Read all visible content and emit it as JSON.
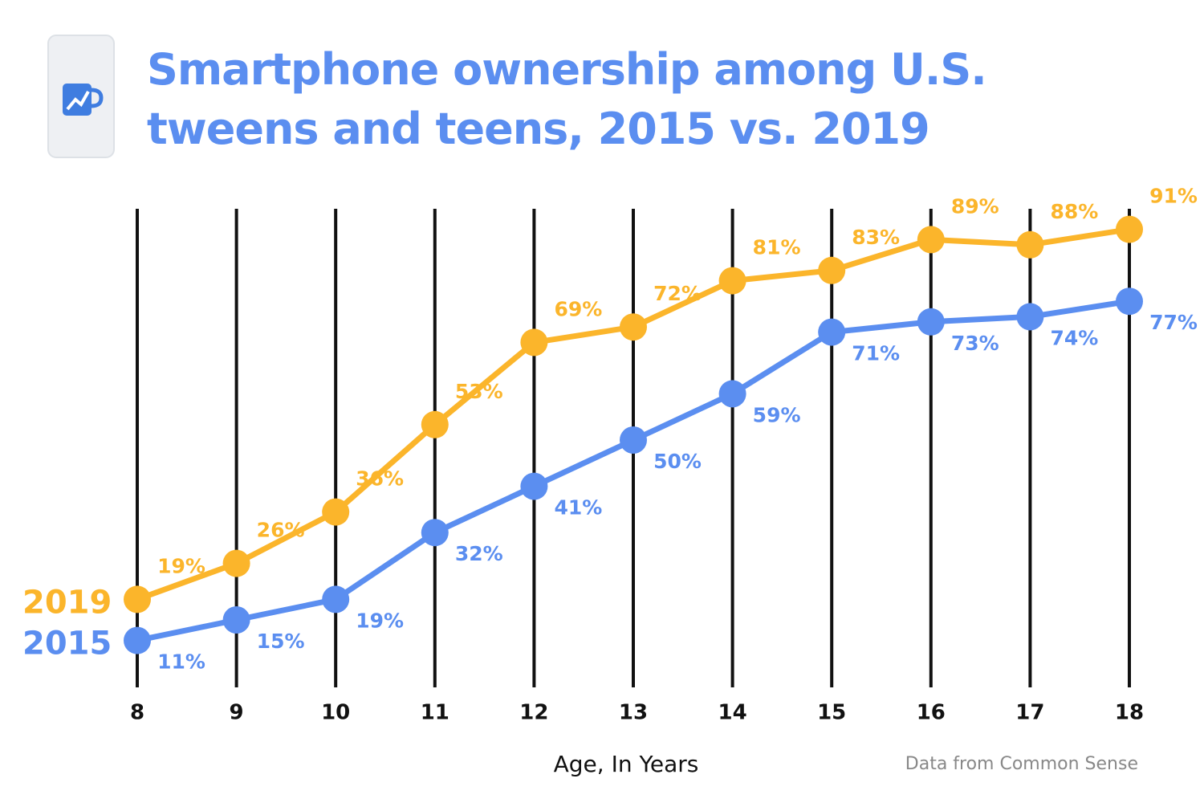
{
  "chart_data": {
    "type": "line",
    "title": "Smartphone ownership among U.S. tweens and teens, 2015 vs. 2019",
    "x_label": "Age, In Years",
    "source": "Data from Common Sense",
    "x": [
      8,
      9,
      10,
      11,
      12,
      13,
      14,
      15,
      16,
      17,
      18
    ],
    "xlim": [
      8,
      18
    ],
    "xticks": [
      8,
      9,
      10,
      11,
      12,
      13,
      14,
      15,
      16,
      17,
      18
    ],
    "series": [
      {
        "name": "2019",
        "color": "#fbb52b",
        "values": [
          19,
          26,
          36,
          53,
          69,
          72,
          81,
          83,
          89,
          88,
          91
        ],
        "value_labels": [
          "19%",
          "26%",
          "36%",
          "53%",
          "69%",
          "72%",
          "81%",
          "83%",
          "89%",
          "88%",
          "91%"
        ]
      },
      {
        "name": "2015",
        "color": "#5b8ef0",
        "values": [
          11,
          15,
          19,
          32,
          41,
          50,
          59,
          71,
          73,
          74,
          77
        ],
        "value_labels": [
          "11%",
          "15%",
          "19%",
          "32%",
          "41%",
          "50%",
          "59%",
          "71%",
          "73%",
          "74%",
          "77%"
        ]
      }
    ]
  }
}
